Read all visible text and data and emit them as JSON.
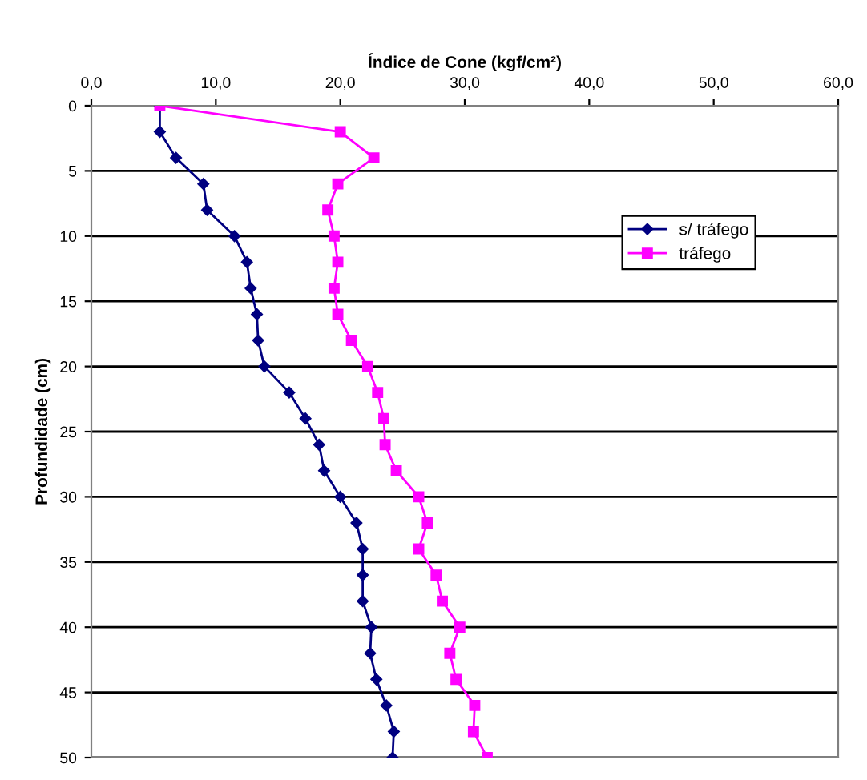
{
  "chart_data": {
    "type": "line",
    "xlabel": "Índice de Cone (kgf/cm²)",
    "ylabel": "Profundidade (cm)",
    "xlim": [
      0,
      60
    ],
    "xticks": [
      {
        "value": 0,
        "label": "0,0"
      },
      {
        "value": 10,
        "label": "10,0"
      },
      {
        "value": 20,
        "label": "20,0"
      },
      {
        "value": 30,
        "label": "30,0"
      },
      {
        "value": 40,
        "label": "40,0"
      },
      {
        "value": 50,
        "label": "50,0"
      },
      {
        "value": 60,
        "label": "60,0"
      }
    ],
    "ylim": [
      50,
      0
    ],
    "yticks": [
      0,
      5,
      10,
      15,
      20,
      25,
      30,
      35,
      40,
      45,
      50
    ],
    "grid": "y",
    "legend": "right",
    "series": [
      {
        "name": "s/ tráfego",
        "color": "#000080",
        "marker": "diamond",
        "x": [
          5.5,
          5.5,
          6.8,
          9.0,
          9.3,
          11.5,
          12.5,
          12.8,
          13.3,
          13.4,
          13.9,
          15.9,
          17.2,
          18.3,
          18.7,
          20.0,
          21.3,
          21.8,
          21.8,
          21.8,
          22.5,
          22.4,
          22.9,
          23.7,
          24.3,
          24.2
        ],
        "values": [
          0,
          2,
          4,
          6,
          8,
          10,
          12,
          14,
          16,
          18,
          20,
          22,
          24,
          26,
          28,
          30,
          32,
          34,
          36,
          38,
          40,
          42,
          44,
          46,
          48,
          50
        ]
      },
      {
        "name": "tráfego",
        "color": "#ff00ff",
        "marker": "square",
        "x": [
          5.5,
          20.0,
          22.7,
          19.8,
          19.0,
          19.5,
          19.8,
          19.5,
          19.8,
          20.9,
          22.2,
          23.0,
          23.5,
          23.6,
          24.5,
          26.3,
          27.0,
          26.3,
          27.7,
          28.2,
          29.6,
          28.8,
          29.3,
          30.8,
          30.7,
          31.8
        ],
        "values": [
          0,
          2,
          4,
          6,
          8,
          10,
          12,
          14,
          16,
          18,
          20,
          22,
          24,
          26,
          28,
          30,
          32,
          34,
          36,
          38,
          40,
          42,
          44,
          46,
          48,
          50
        ]
      }
    ]
  }
}
